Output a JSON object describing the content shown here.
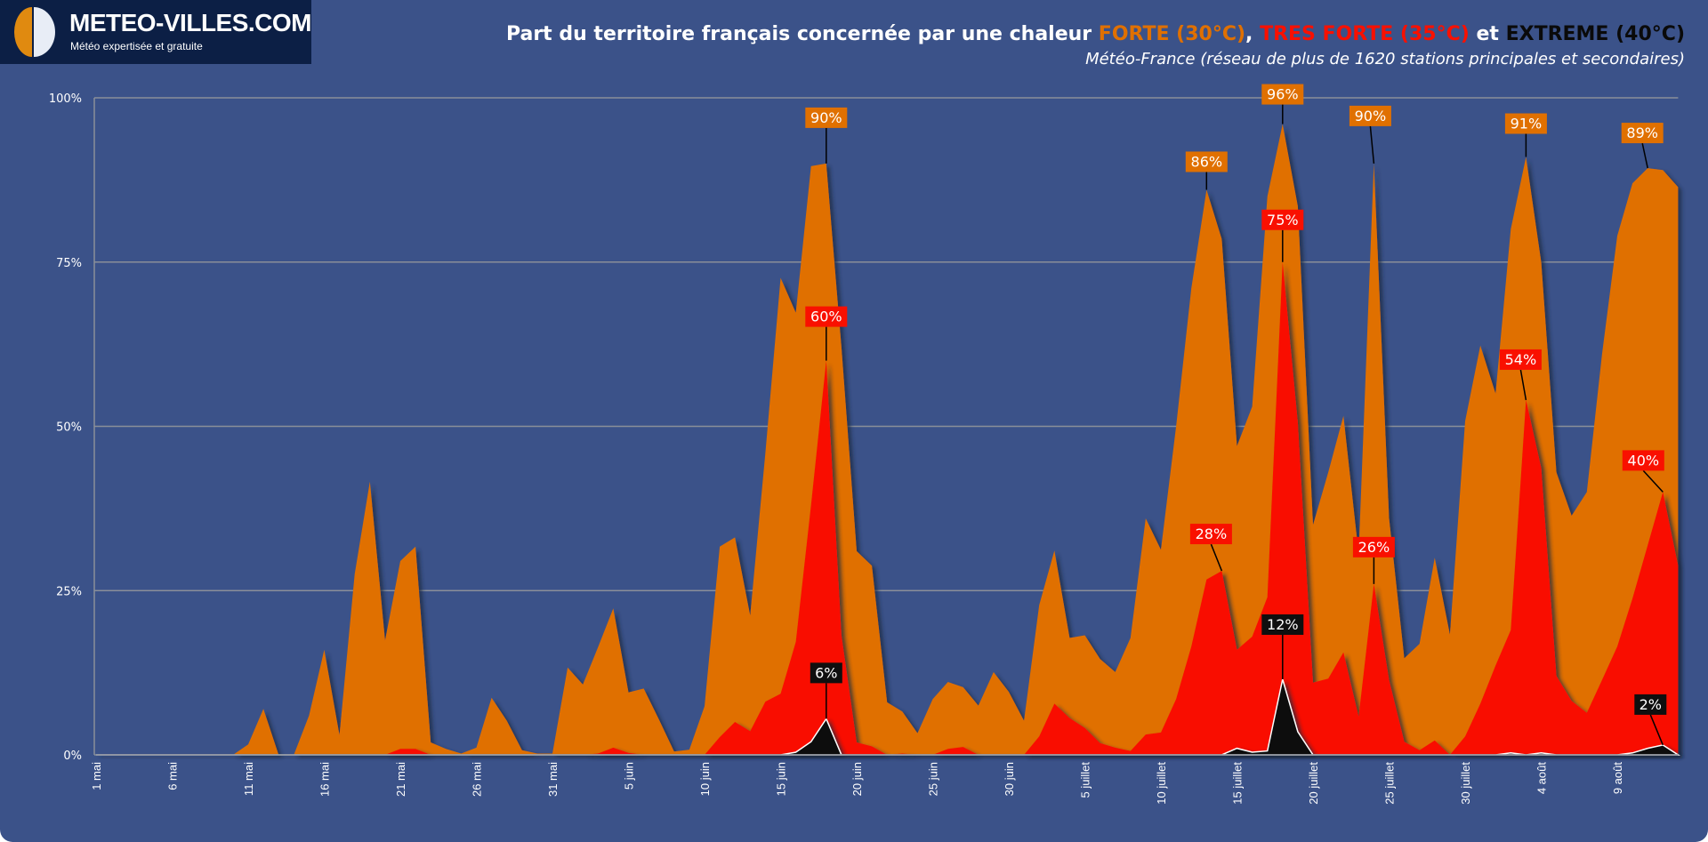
{
  "logo": {
    "name": "METEO-VILLES.COM",
    "tagline": "Météo expertisée et gratuite"
  },
  "header": {
    "title_prefix": "Part du territoire français concernée par une chaleur ",
    "title_forte": "FORTE (30°C)",
    "title_sep1": ", ",
    "title_tres_forte": "TRES FORTE (35°C)",
    "title_sep2": " et ",
    "title_extreme": "EXTREME (40°C)",
    "subtitle": "Météo-France (réseau de plus de 1620 stations principales et secondaires)"
  },
  "colors": {
    "background": "#3b5289",
    "forte": "#e07000",
    "tres_forte": "#f91000",
    "extreme": "#111111",
    "grid": "#8a8f99"
  },
  "chart_data": {
    "type": "area",
    "title": "Part du territoire français concernée par une chaleur FORTE (30°C), TRES FORTE (35°C) et EXTREME (40°C)",
    "x_start": "1 mai",
    "x_step_days": 1,
    "ylim": [
      0,
      100
    ],
    "y_unit": "%",
    "grid": true,
    "yticks": [
      "0%",
      "25%",
      "50%",
      "75%",
      "100%"
    ],
    "yticks_values": [
      0,
      25,
      50,
      75,
      100
    ],
    "xticks": [
      "1 mai",
      "6 mai",
      "11 mai",
      "16 mai",
      "21 mai",
      "26 mai",
      "31 mai",
      "5 juin",
      "10 juin",
      "15 juin",
      "20 juin",
      "25 juin",
      "30 juin",
      "5 juillet",
      "10 juillet",
      "15 juillet",
      "20 juillet",
      "25 juillet",
      "30 juillet",
      "4 août",
      "9 août"
    ],
    "xtick_every_days": 5,
    "series": [
      {
        "name": "FORTE (30°C)",
        "color": "#e07000",
        "values": [
          0,
          0,
          0,
          0,
          0,
          0,
          0,
          0,
          0,
          0,
          1.6,
          7,
          0,
          0,
          6,
          16,
          3,
          27.5,
          41.6,
          17.4,
          29.5,
          31.7,
          1.9,
          0.9,
          0.2,
          1.1,
          8.7,
          5.2,
          0.7,
          0.2,
          0.2,
          13.3,
          10.7,
          16.4,
          22.3,
          9.5,
          10.1,
          5.4,
          0.5,
          0.8,
          7.4,
          31.7,
          33.1,
          21.2,
          46,
          72.6,
          67.3,
          89.6,
          90,
          62,
          31,
          28.8,
          8,
          6.6,
          3.3,
          8.5,
          11.1,
          10.3,
          7.5,
          12.6,
          9.6,
          5.2,
          22.8,
          31.1,
          17.8,
          18.2,
          14.6,
          12.6,
          17.8,
          36,
          31.2,
          50,
          71,
          86,
          78.5,
          47,
          53,
          85,
          96,
          83.5,
          35,
          43,
          51.6,
          30.6,
          90,
          36,
          14.7,
          16.9,
          30,
          18.3,
          50.8,
          62.3,
          55,
          80,
          91,
          75,
          43,
          36.4,
          40,
          61,
          79,
          87,
          89.3,
          89,
          86.4
        ]
      },
      {
        "name": "TRES FORTE (35°C)",
        "color": "#f91000",
        "values": [
          0,
          0,
          0,
          0,
          0,
          0,
          0,
          0,
          0,
          0,
          0,
          0,
          0,
          0,
          0,
          0,
          0,
          0,
          0,
          0,
          0.9,
          0.9,
          0,
          0,
          0,
          0,
          0,
          0,
          0,
          0,
          0,
          0,
          0,
          0.2,
          1.1,
          0.3,
          0,
          0,
          0,
          0,
          0,
          2.7,
          5,
          3.6,
          8.1,
          9.3,
          17.2,
          38,
          60,
          18.2,
          1.9,
          1.3,
          0,
          0.2,
          0,
          0,
          0.9,
          1.2,
          0,
          0,
          0,
          0,
          2.8,
          7.8,
          5.6,
          4.1,
          1.8,
          1.1,
          0.6,
          3.1,
          3.4,
          8.5,
          16.5,
          26.7,
          28,
          16,
          18,
          24,
          75,
          50.6,
          11,
          11.6,
          15.6,
          5.8,
          26,
          11.4,
          2,
          0.7,
          2.2,
          0,
          2.8,
          7.8,
          13.6,
          19,
          54,
          43.7,
          12,
          8.2,
          6.4,
          11.4,
          16.5,
          23.8,
          31.9,
          40,
          28.8
        ]
      },
      {
        "name": "EXTREME (40°C)",
        "color": "#111111",
        "values": [
          0,
          0,
          0,
          0,
          0,
          0,
          0,
          0,
          0,
          0,
          0,
          0,
          0,
          0,
          0,
          0,
          0,
          0,
          0,
          0,
          0,
          0,
          0,
          0,
          0,
          0,
          0,
          0,
          0,
          0,
          0,
          0,
          0,
          0,
          0,
          0,
          0,
          0,
          0,
          0,
          0,
          0,
          0,
          0,
          0,
          0,
          0.4,
          2,
          5.5,
          0,
          0,
          0,
          0,
          0,
          0,
          0,
          0,
          0,
          0,
          0,
          0,
          0,
          0,
          0,
          0,
          0,
          0,
          0,
          0,
          0,
          0,
          0,
          0,
          0,
          0,
          1,
          0.4,
          0.6,
          11.5,
          3.5,
          0,
          0,
          0,
          0,
          0,
          0,
          0,
          0,
          0,
          0,
          0,
          0,
          0,
          0.3,
          0,
          0.3,
          0,
          0,
          0,
          0,
          0,
          0.3,
          1,
          1.5,
          0
        ]
      }
    ],
    "annotations": [
      {
        "series": 0,
        "day": 48,
        "label": "90%"
      },
      {
        "series": 0,
        "day": 73,
        "label": "86%"
      },
      {
        "series": 0,
        "day": 78,
        "label": "96%"
      },
      {
        "series": 0,
        "day": 84,
        "label": "90%"
      },
      {
        "series": 0,
        "day": 94,
        "label": "91%"
      },
      {
        "series": 0,
        "day": 102,
        "label": "89%"
      },
      {
        "series": 1,
        "day": 48,
        "label": "60%"
      },
      {
        "series": 1,
        "day": 74,
        "label": "28%"
      },
      {
        "series": 1,
        "day": 78,
        "label": "75%"
      },
      {
        "series": 1,
        "day": 84,
        "label": "26%"
      },
      {
        "series": 1,
        "day": 94,
        "label": "54%"
      },
      {
        "series": 1,
        "day": 103,
        "label": "40%"
      },
      {
        "series": 2,
        "day": 48,
        "label": "6%"
      },
      {
        "series": 2,
        "day": 78,
        "label": "12%"
      },
      {
        "series": 2,
        "day": 103,
        "label": "2%"
      }
    ]
  }
}
